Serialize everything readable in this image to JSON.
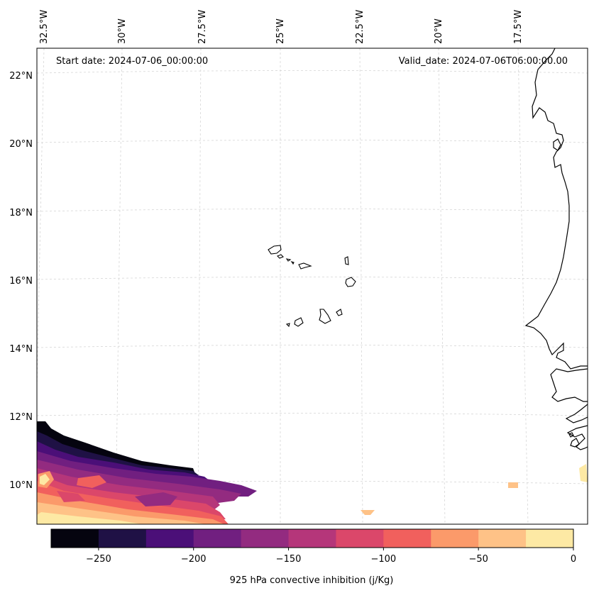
{
  "header": {
    "start_date": "Start date: 2024-07-06_00:00:00",
    "valid_date": "Valid_date: 2024-07-06T06:00:00.00"
  },
  "axes": {
    "top_longitudes": [
      "32.5°W",
      "30°W",
      "27.5°W",
      "25°W",
      "22.5°W",
      "20°W",
      "17.5°W"
    ],
    "left_latitudes": [
      "22°N",
      "20°N",
      "18°N",
      "16°N",
      "14°N",
      "12°N",
      "10°N"
    ]
  },
  "colorbar": {
    "label": "925 hPa convective inhibition (j/Kg)",
    "ticks": [
      "−250",
      "−200",
      "−150",
      "−100",
      "−50",
      "0"
    ],
    "range": [
      -275,
      0
    ],
    "levels": [
      -275,
      -250,
      -225,
      -200,
      -175,
      -150,
      -125,
      -100,
      -75,
      -50,
      -25,
      0
    ],
    "colors": [
      "#05040f",
      "#1f1145",
      "#4b0f78",
      "#711f80",
      "#932b80",
      "#b5367a",
      "#db476a",
      "#f1605d",
      "#fb9a6a",
      "#fec287",
      "#fde9a4"
    ]
  }
}
